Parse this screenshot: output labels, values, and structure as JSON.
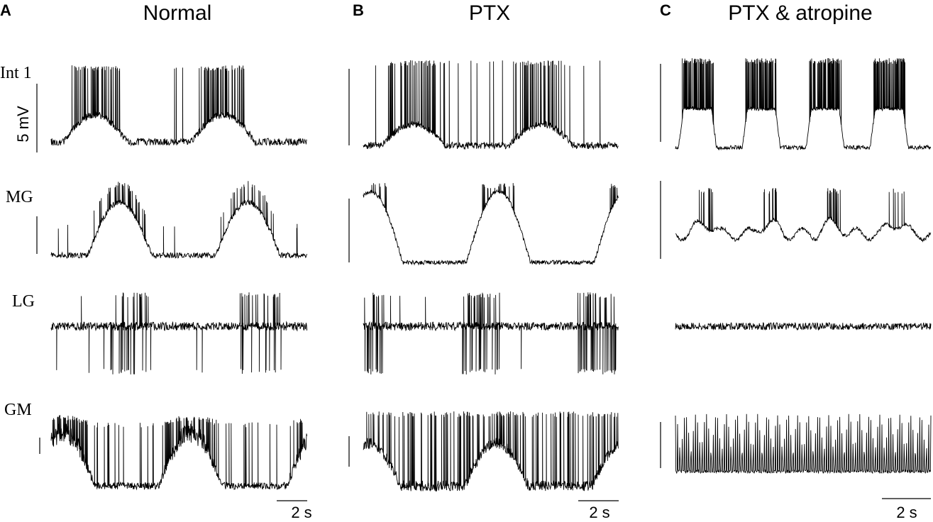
{
  "panels": [
    {
      "letter": "A",
      "title": "Normal",
      "scale_time": "2 s"
    },
    {
      "letter": "B",
      "title": "PTX",
      "scale_time": "2 s"
    },
    {
      "letter": "C",
      "title": "PTX & atropine",
      "scale_time": "2 s"
    }
  ],
  "rows": [
    "Int 1",
    "MG",
    "LG",
    "GM"
  ],
  "scale_voltage": "5 mV"
}
